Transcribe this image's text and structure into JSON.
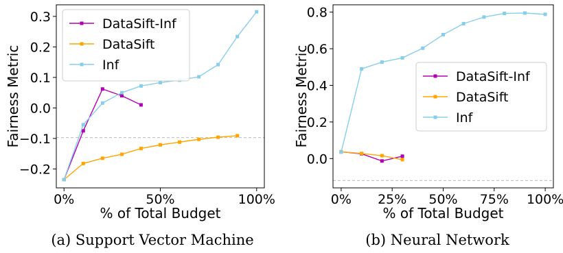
{
  "chart_data": [
    {
      "type": "line",
      "caption": "(a) Support Vector Machine",
      "xlabel": "% of Total Budget",
      "ylabel": "Fairness Metric",
      "xlim": [
        -0.04,
        1.04
      ],
      "ylim": [
        -0.262,
        0.338
      ],
      "xticks": [
        0,
        0.5,
        1.0
      ],
      "xtick_labels": [
        "0%",
        "50%",
        "100%"
      ],
      "yticks": [
        -0.2,
        -0.1,
        0.0,
        0.1,
        0.2,
        0.3
      ],
      "ytick_labels": [
        "−0.2",
        "−0.1",
        "0.0",
        "0.1",
        "0.2",
        "0.3"
      ],
      "reference_line": -0.097,
      "legend_position": "upper-left",
      "series": [
        {
          "name": "DataSift-Inf",
          "color": "#b000b0",
          "x": [
            0,
            0.1,
            0.2,
            0.3,
            0.4
          ],
          "y": [
            -0.235,
            -0.075,
            0.062,
            0.04,
            0.01
          ]
        },
        {
          "name": "DataSift",
          "color": "#ffa500",
          "x": [
            0,
            0.1,
            0.2,
            0.3,
            0.4,
            0.5,
            0.6,
            0.7,
            0.8,
            0.9
          ],
          "y": [
            -0.235,
            -0.182,
            -0.165,
            -0.152,
            -0.133,
            -0.121,
            -0.112,
            -0.103,
            -0.096,
            -0.091
          ]
        },
        {
          "name": "Inf",
          "color": "#87ceeb",
          "x": [
            0,
            0.1,
            0.2,
            0.3,
            0.4,
            0.5,
            0.6,
            0.7,
            0.8,
            0.9,
            1.0
          ],
          "y": [
            -0.235,
            -0.055,
            0.016,
            0.05,
            0.072,
            0.083,
            0.091,
            0.102,
            0.142,
            0.234,
            0.315
          ]
        }
      ]
    },
    {
      "type": "line",
      "caption": "(b) Neural Network",
      "xlabel": "% of Total Budget",
      "ylabel": "Fairness Metric",
      "xlim": [
        -0.04,
        1.04
      ],
      "ylim": [
        -0.16,
        0.84
      ],
      "xticks": [
        0,
        0.25,
        0.5,
        0.75,
        1.0
      ],
      "xtick_labels": [
        "0%",
        "25%",
        "50%",
        "75%",
        "100%"
      ],
      "yticks": [
        0.0,
        0.2,
        0.4,
        0.6,
        0.8
      ],
      "ytick_labels": [
        "0.0",
        "0.2",
        "0.4",
        "0.6",
        "0.8"
      ],
      "reference_line": -0.12,
      "legend_position": "center-right",
      "series": [
        {
          "name": "DataSift-Inf",
          "color": "#b000b0",
          "x": [
            0,
            0.1,
            0.2,
            0.3
          ],
          "y": [
            0.037,
            0.026,
            -0.013,
            0.013
          ]
        },
        {
          "name": "DataSift",
          "color": "#ffa500",
          "x": [
            0,
            0.1,
            0.2,
            0.3
          ],
          "y": [
            0.037,
            0.028,
            0.016,
            -0.006
          ]
        },
        {
          "name": "Inf",
          "color": "#87ceeb",
          "x": [
            0,
            0.1,
            0.2,
            0.3,
            0.4,
            0.5,
            0.6,
            0.7,
            0.8,
            0.9,
            1.0
          ],
          "y": [
            0.035,
            0.49,
            0.527,
            0.55,
            0.603,
            0.677,
            0.737,
            0.773,
            0.793,
            0.795,
            0.788
          ]
        }
      ]
    }
  ]
}
